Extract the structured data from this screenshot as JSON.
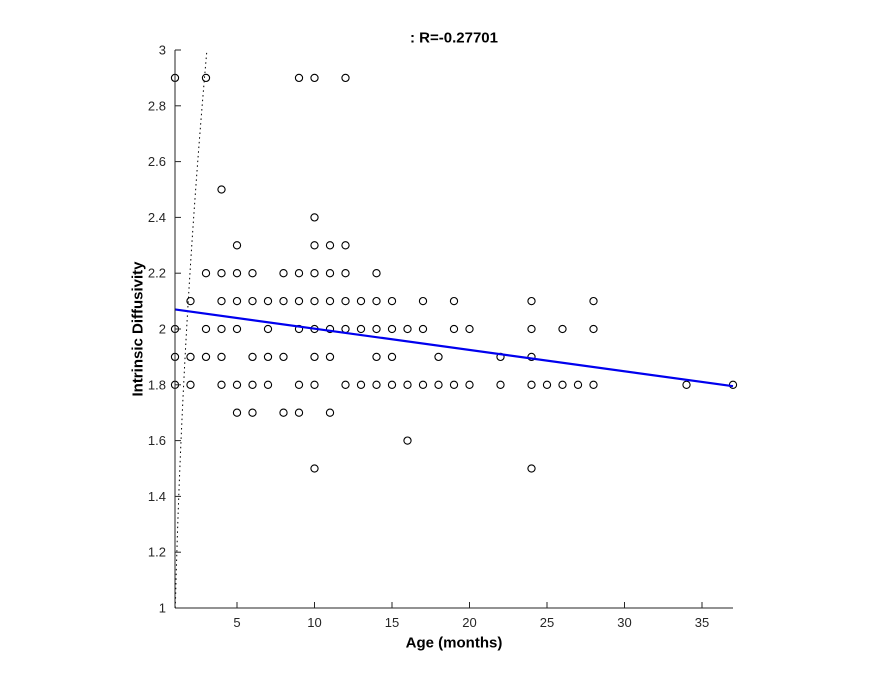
{
  "chart_data": {
    "type": "scatter",
    "title": ": R=-0.27701",
    "xlabel": "Age (months)",
    "ylabel": "Intrinsic Diffusivity",
    "xlim": [
      1,
      37
    ],
    "ylim": [
      1,
      3
    ],
    "grid": false,
    "legend": "none",
    "xticks": {
      "values": [
        5,
        10,
        15,
        20,
        25,
        30,
        35
      ],
      "labels": [
        "5",
        "10",
        "15",
        "20",
        "25",
        "30",
        "35"
      ]
    },
    "yticks": {
      "values": [
        1,
        1.2,
        1.4,
        1.6,
        1.8,
        2,
        2.2,
        2.4,
        2.6,
        2.8,
        3
      ],
      "labels": [
        "1",
        "1.2",
        "1.4",
        "1.6",
        "1.8",
        "2",
        "2.2",
        "2.4",
        "2.6",
        "2.8",
        "3"
      ]
    },
    "points_by_row": [
      {
        "y": 2.9,
        "x": [
          1,
          3,
          9,
          10,
          12
        ]
      },
      {
        "y": 2.5,
        "x": [
          4
        ]
      },
      {
        "y": 2.4,
        "x": [
          10
        ]
      },
      {
        "y": 2.3,
        "x": [
          5,
          10,
          11,
          12
        ]
      },
      {
        "y": 2.2,
        "x": [
          3,
          4,
          5,
          6,
          8,
          9,
          10,
          11,
          12,
          14
        ]
      },
      {
        "y": 2.1,
        "x": [
          2,
          4,
          5,
          6,
          7,
          8,
          9,
          10,
          11,
          12,
          13,
          14,
          15,
          17,
          19,
          24,
          28
        ]
      },
      {
        "y": 2.0,
        "x": [
          1,
          3,
          4,
          5,
          7,
          9,
          10,
          11,
          12,
          13,
          14,
          15,
          16,
          17,
          19,
          20,
          24,
          26,
          28
        ]
      },
      {
        "y": 1.9,
        "x": [
          1,
          2,
          3,
          4,
          6,
          7,
          8,
          10,
          11,
          14,
          15,
          18,
          22,
          24
        ]
      },
      {
        "y": 1.8,
        "x": [
          1,
          2,
          4,
          5,
          6,
          7,
          9,
          10,
          12,
          13,
          14,
          15,
          16,
          17,
          18,
          19,
          20,
          22,
          24,
          25,
          26,
          27,
          28,
          34,
          37
        ]
      },
      {
        "y": 1.7,
        "x": [
          5,
          6,
          8,
          9,
          11
        ]
      },
      {
        "y": 1.6,
        "x": [
          16
        ]
      },
      {
        "y": 1.5,
        "x": [
          10,
          24
        ]
      }
    ],
    "regression_line": {
      "x": [
        1,
        37
      ],
      "y": [
        2.07,
        1.795
      ]
    },
    "dotted_line": {
      "shape": "quadratic",
      "x": [
        1.02,
        1.46,
        3.06
      ],
      "y": [
        1.0,
        2.0,
        3.0
      ]
    },
    "colors": {
      "marker_stroke": "#000000",
      "regression": "#0000ee",
      "dotted": "#000000",
      "axis": "#262626",
      "tick_label": "#262626",
      "title": "#000000"
    }
  }
}
